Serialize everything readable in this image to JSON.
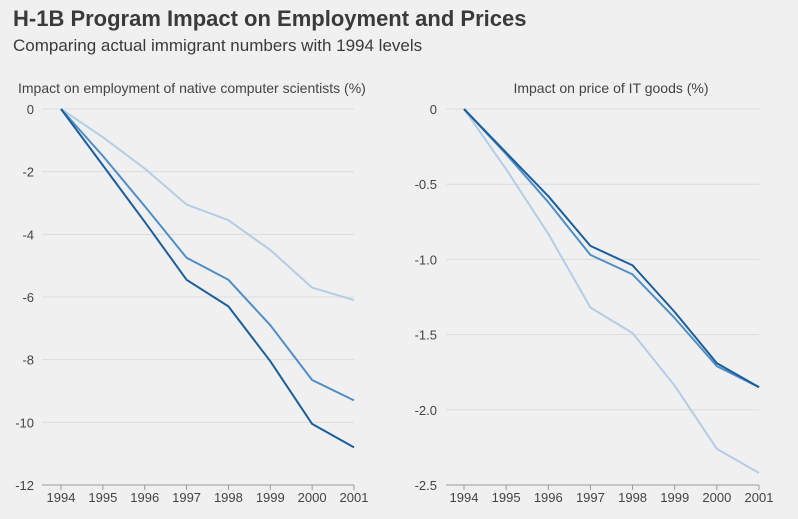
{
  "header": {
    "title": "H-1B Program Impact on Employment and Prices",
    "subtitle": "Comparing actual immigrant numbers with 1994 levels"
  },
  "colors": {
    "dark": "#1a5e9c",
    "medium": "#4f8ec6",
    "light": "#b3cde6",
    "grid": "#dcdcdc",
    "axis": "#9a9a9a",
    "text": "#444444"
  },
  "chart_data": [
    {
      "type": "line",
      "title": "Impact on employment of native computer scientists (%)",
      "x": [
        1994,
        1995,
        1996,
        1997,
        1998,
        1999,
        2000,
        2001
      ],
      "x_tick_labels": [
        "1994",
        "1995",
        "1996",
        "1997",
        "1998",
        "1999",
        "2000",
        "2001"
      ],
      "y_tick_labels": [
        "0",
        "-2",
        "-4",
        "-6",
        "-8",
        "-10",
        "-12"
      ],
      "y_ticks": [
        0,
        -2,
        -4,
        -6,
        -8,
        -10,
        -12
      ],
      "ylim": [
        -12,
        0
      ],
      "grid": true,
      "series": [
        {
          "color_key": "light",
          "values": [
            0,
            -0.9,
            -1.9,
            -3.05,
            -3.55,
            -4.5,
            -5.7,
            -6.1
          ]
        },
        {
          "color_key": "medium",
          "values": [
            0,
            -1.5,
            -3.1,
            -4.75,
            -5.45,
            -6.9,
            -8.65,
            -9.3
          ]
        },
        {
          "color_key": "dark",
          "values": [
            0,
            -1.8,
            -3.6,
            -5.45,
            -6.3,
            -8.05,
            -10.05,
            -10.8
          ]
        }
      ]
    },
    {
      "type": "line",
      "title": "Impact on price of IT goods (%)",
      "x": [
        1994,
        1995,
        1996,
        1997,
        1998,
        1999,
        2000,
        2001
      ],
      "x_tick_labels": [
        "1994",
        "1995",
        "1996",
        "1997",
        "1998",
        "1999",
        "2000",
        "2001"
      ],
      "y_tick_labels": [
        "0",
        "-0.5",
        "-1.0",
        "-1.5",
        "-2.0",
        "-2.5"
      ],
      "y_ticks": [
        0,
        -0.5,
        -1.0,
        -1.5,
        -2.0,
        -2.5
      ],
      "ylim": [
        -2.5,
        0
      ],
      "grid": true,
      "series": [
        {
          "color_key": "light",
          "values": [
            0,
            -0.4,
            -0.83,
            -1.32,
            -1.49,
            -1.84,
            -2.26,
            -2.42
          ]
        },
        {
          "color_key": "medium",
          "values": [
            0,
            -0.3,
            -0.62,
            -0.97,
            -1.1,
            -1.39,
            -1.71,
            -1.85
          ]
        },
        {
          "color_key": "dark",
          "values": [
            0,
            -0.29,
            -0.58,
            -0.91,
            -1.04,
            -1.35,
            -1.69,
            -1.85
          ]
        }
      ]
    }
  ]
}
